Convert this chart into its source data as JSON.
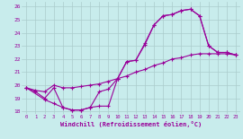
{
  "xlabel": "Windchill (Refroidissement éolien,°C)",
  "xlim": [
    -0.5,
    23.5
  ],
  "ylim": [
    17.8,
    26.4
  ],
  "yticks": [
    18,
    19,
    20,
    21,
    22,
    23,
    24,
    25,
    26
  ],
  "xticks": [
    0,
    1,
    2,
    3,
    4,
    5,
    6,
    7,
    8,
    9,
    10,
    11,
    12,
    13,
    14,
    15,
    16,
    17,
    18,
    19,
    20,
    21,
    22,
    23
  ],
  "bg_color": "#c8ecec",
  "line_color": "#990099",
  "grid_color": "#aacccc",
  "line1_x": [
    0,
    1,
    2,
    3,
    4,
    5,
    6,
    7,
    8,
    9,
    10,
    11,
    12,
    13,
    14,
    15,
    16,
    17,
    18,
    19,
    20,
    21,
    22,
    23
  ],
  "line1_y": [
    19.8,
    19.5,
    19.0,
    19.8,
    18.3,
    18.1,
    18.1,
    18.3,
    19.5,
    19.7,
    20.5,
    21.8,
    21.9,
    23.2,
    24.6,
    25.3,
    25.4,
    25.7,
    25.8,
    25.3,
    23.0,
    22.5,
    22.5,
    22.3
  ],
  "line2_x": [
    0,
    2,
    3,
    4,
    5,
    6,
    7,
    8,
    9,
    10,
    11,
    12,
    13,
    14,
    15,
    16,
    17,
    18,
    19,
    20,
    21,
    22,
    23
  ],
  "line2_y": [
    19.8,
    18.9,
    18.6,
    18.3,
    18.1,
    18.1,
    18.3,
    18.4,
    18.4,
    20.5,
    21.8,
    21.9,
    23.1,
    24.6,
    25.3,
    25.4,
    25.7,
    25.8,
    25.3,
    23.0,
    22.5,
    22.5,
    22.3
  ],
  "line3_x": [
    0,
    1,
    2,
    3,
    4,
    5,
    6,
    7,
    8,
    9,
    10,
    11,
    12,
    13,
    14,
    15,
    16,
    17,
    18,
    19,
    20,
    21,
    22,
    23
  ],
  "line3_y": [
    19.8,
    19.6,
    19.5,
    20.0,
    19.8,
    19.8,
    19.9,
    20.0,
    20.1,
    20.3,
    20.5,
    20.7,
    21.0,
    21.2,
    21.5,
    21.7,
    22.0,
    22.1,
    22.3,
    22.4,
    22.4,
    22.4,
    22.4,
    22.3
  ]
}
